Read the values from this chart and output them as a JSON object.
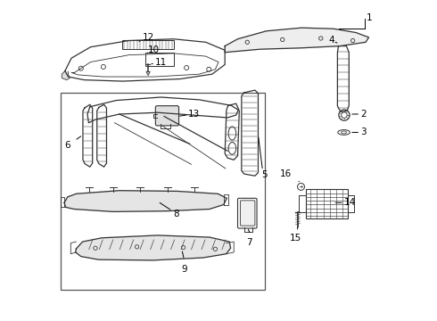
{
  "bg_color": "#ffffff",
  "line_color": "#333333",
  "part_numbers": [
    "1",
    "2",
    "3",
    "4",
    "5",
    "6",
    "7",
    "8",
    "9",
    "10",
    "11",
    "12",
    "13",
    "14",
    "15",
    "16"
  ]
}
